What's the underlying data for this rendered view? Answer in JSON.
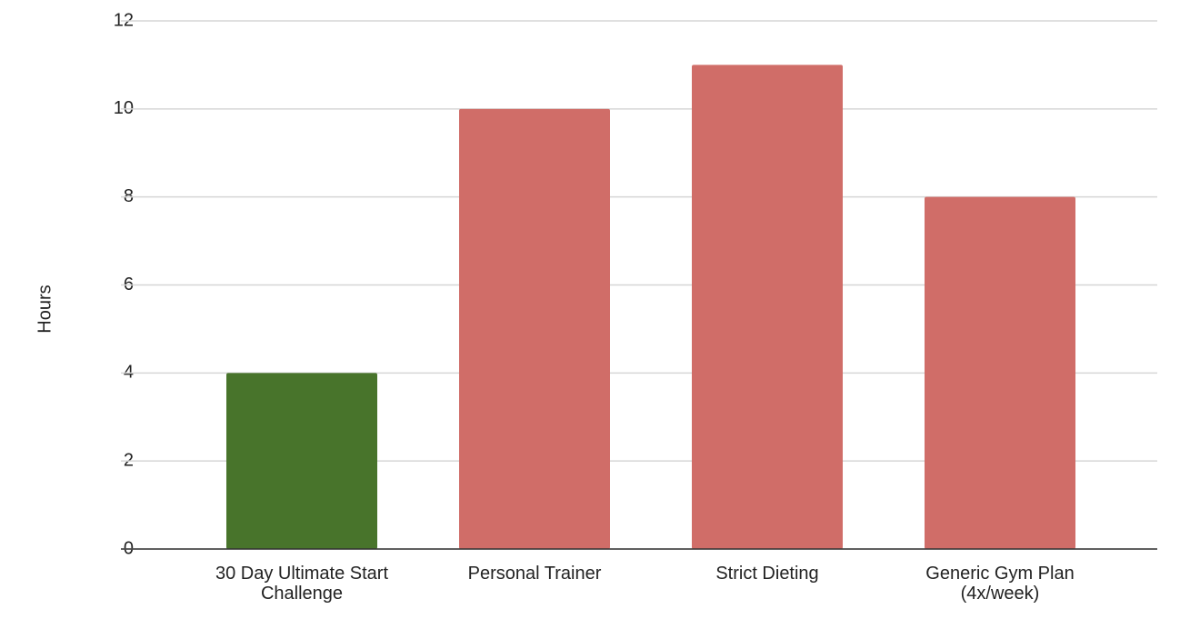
{
  "chart_data": {
    "type": "bar",
    "y_label": "Hours",
    "categories": [
      "30 Day Ultimate Start Challenge",
      "Personal Trainer",
      "Strict Dieting",
      "Generic Gym Plan (4x/week)"
    ],
    "values": [
      4,
      10,
      11,
      8
    ],
    "colors": [
      "#48742b",
      "#d06d68",
      "#d06d68",
      "#d06d68"
    ],
    "ylim": [
      0,
      12
    ],
    "yticks": [
      0,
      2,
      4,
      6,
      8,
      10,
      12
    ],
    "grid": true
  }
}
